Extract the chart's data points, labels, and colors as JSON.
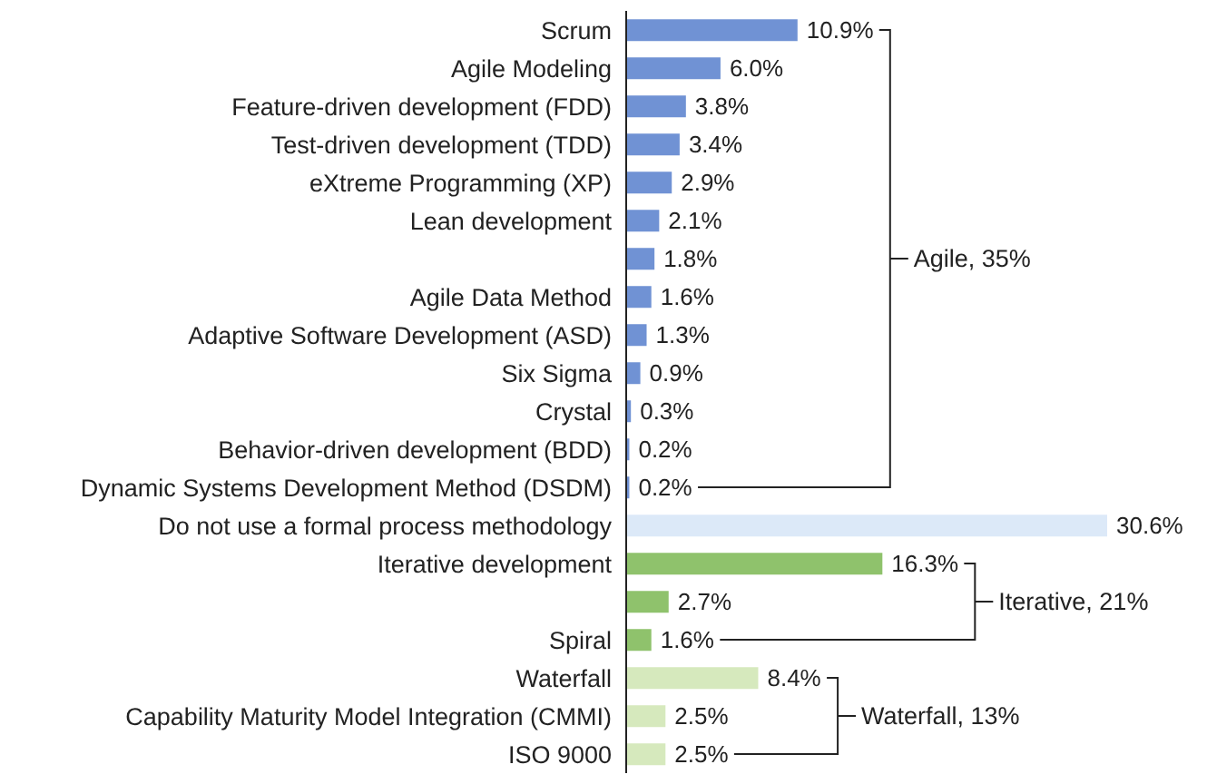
{
  "chart_data": {
    "type": "bar",
    "orientation": "horizontal",
    "categories": [
      "Scrum",
      "Agile Modeling",
      "Feature-driven development (FDD)",
      "Test-driven development (TDD)",
      "eXtreme Programming (XP)",
      "Lean development",
      null,
      "Agile Data Method",
      "Adaptive Software Development (ASD)",
      "Six Sigma",
      "Crystal",
      "Behavior-driven development (BDD)",
      "Dynamic Systems Development Method (DSDM)",
      "Do not use a formal process methodology",
      "Iterative development",
      null,
      "Spiral",
      "Waterfall",
      "Capability Maturity Model Integration (CMMI)",
      "ISO 9000"
    ],
    "values": [
      10.9,
      6.0,
      3.8,
      3.4,
      2.9,
      2.1,
      1.8,
      1.6,
      1.3,
      0.9,
      0.3,
      0.2,
      0.2,
      30.6,
      16.3,
      2.7,
      1.6,
      8.4,
      2.5,
      2.5
    ],
    "value_labels": [
      "10.9%",
      "6.0%",
      "3.8%",
      "3.4%",
      "2.9%",
      "2.1%",
      "1.8%",
      "1.6%",
      "1.3%",
      "0.9%",
      "0.3%",
      "0.2%",
      "0.2%",
      "30.6%",
      "16.3%",
      "2.7%",
      "1.6%",
      "8.4%",
      "2.5%",
      "2.5%"
    ],
    "colors": [
      "#7092d4",
      "#7092d4",
      "#7092d4",
      "#7092d4",
      "#7092d4",
      "#7092d4",
      "#7092d4",
      "#7092d4",
      "#7092d4",
      "#7092d4",
      "#7092d4",
      "#7092d4",
      "#7092d4",
      "#dce9f8",
      "#8fc26c",
      "#8fc26c",
      "#8fc26c",
      "#d6e9bd",
      "#d6e9bd",
      "#d6e9bd"
    ],
    "annotations": [
      "Agile, 35%",
      "Iterative, 21%",
      "Waterfall, 13%"
    ]
  }
}
